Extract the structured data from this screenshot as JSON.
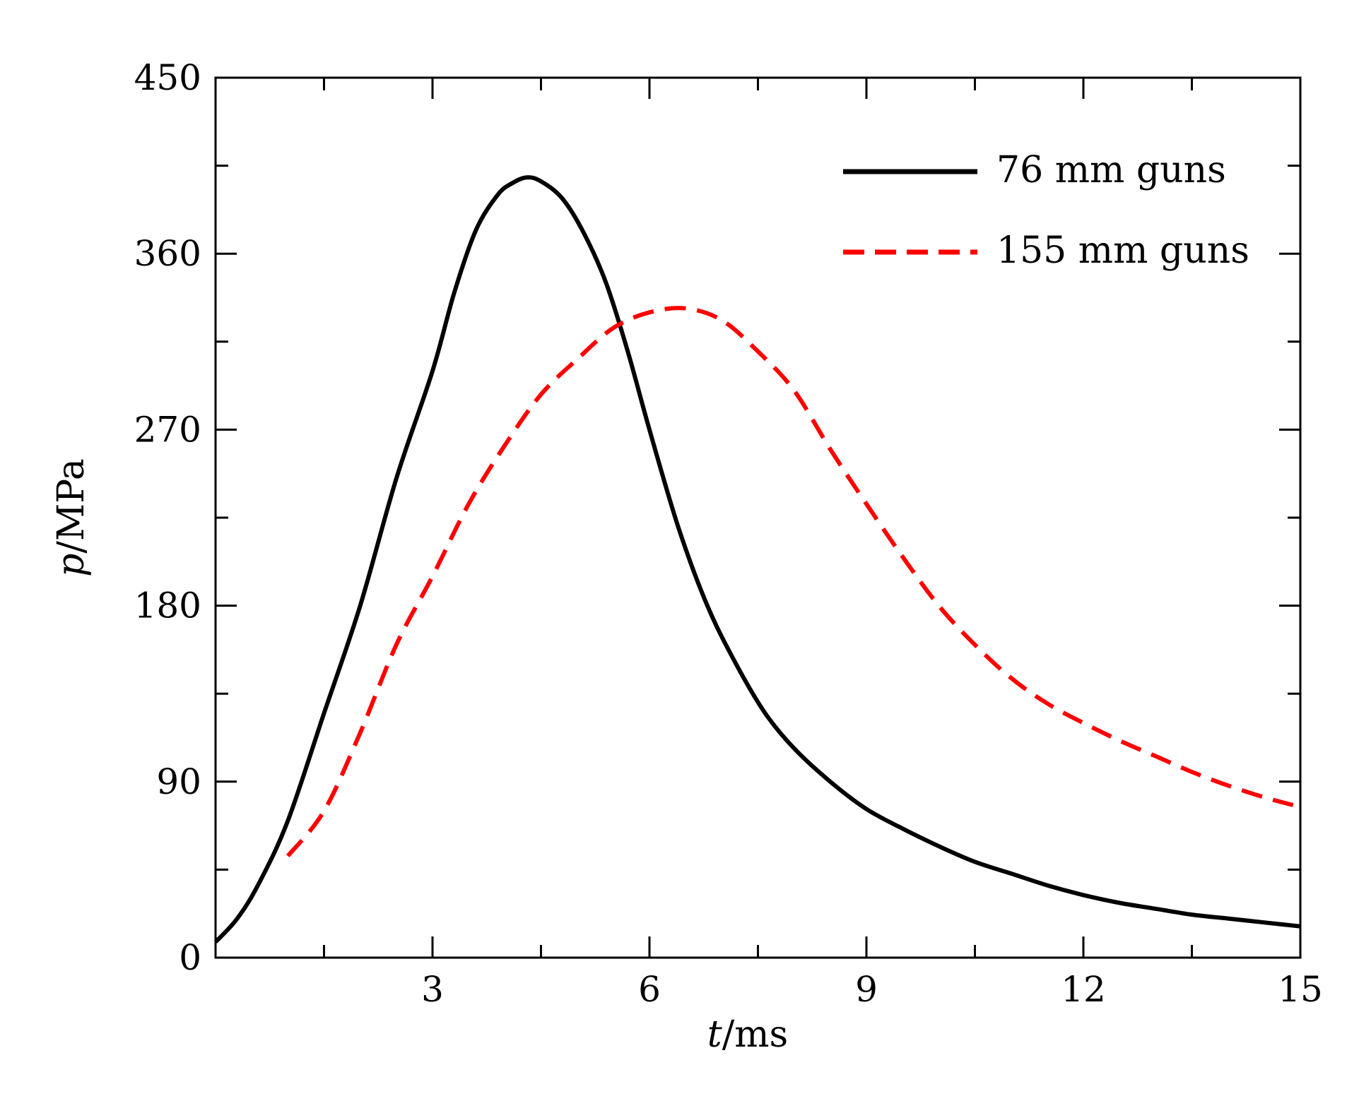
{
  "chart_data": {
    "type": "line",
    "xlabel": {
      "var": "t",
      "unit": "/ms"
    },
    "ylabel": {
      "var": "p",
      "unit": "/MPa"
    },
    "xlim": [
      0,
      15
    ],
    "ylim": [
      0,
      450
    ],
    "xticks": [
      3,
      6,
      9,
      12,
      15
    ],
    "xticks_minor": [
      1.5,
      4.5,
      7.5,
      10.5,
      13.5
    ],
    "yticks": [
      0,
      90,
      180,
      270,
      360,
      450
    ],
    "yticks_minor": [
      45,
      135,
      225,
      315,
      405
    ],
    "x_tick_labels": [
      "3",
      "6",
      "9",
      "12",
      "15"
    ],
    "y_tick_labels": [
      "0",
      "90",
      "180",
      "270",
      "360",
      "450"
    ],
    "grid": false,
    "legend_position": "top-right",
    "series": [
      {
        "name": "76 mm guns",
        "color": "#000000",
        "style": "solid",
        "x": [
          0,
          0.3,
          0.6,
          1.0,
          1.5,
          2.0,
          2.5,
          3.0,
          3.3,
          3.6,
          3.9,
          4.1,
          4.3,
          4.5,
          4.8,
          5.1,
          5.4,
          5.7,
          6.0,
          6.4,
          6.8,
          7.2,
          7.6,
          8.0,
          8.5,
          9.0,
          9.5,
          10.0,
          10.5,
          11.0,
          11.5,
          12.0,
          12.5,
          13.0,
          13.5,
          14.0,
          14.5,
          15.0
        ],
        "y": [
          8,
          20,
          38,
          70,
          125,
          180,
          245,
          300,
          340,
          372,
          390,
          396,
          399,
          397,
          388,
          370,
          345,
          310,
          270,
          220,
          180,
          150,
          125,
          107,
          90,
          76,
          66,
          57,
          49,
          43,
          37,
          32,
          28,
          25,
          22,
          20,
          18,
          16
        ]
      },
      {
        "name": "155 mm guns",
        "color": "#ff0000",
        "style": "dashed",
        "x": [
          1.0,
          1.5,
          2.0,
          2.5,
          3.0,
          3.5,
          4.0,
          4.5,
          5.0,
          5.5,
          6.0,
          6.5,
          7.0,
          7.5,
          8.0,
          8.5,
          9.0,
          9.5,
          10.0,
          10.5,
          11.0,
          11.5,
          12.0,
          12.5,
          13.0,
          13.5,
          14.0,
          14.5,
          14.9
        ],
        "y": [
          52,
          75,
          115,
          160,
          195,
          232,
          262,
          288,
          306,
          322,
          330,
          332,
          326,
          310,
          290,
          260,
          232,
          205,
          180,
          160,
          143,
          130,
          120,
          111,
          103,
          95,
          88,
          82,
          78
        ]
      }
    ]
  }
}
